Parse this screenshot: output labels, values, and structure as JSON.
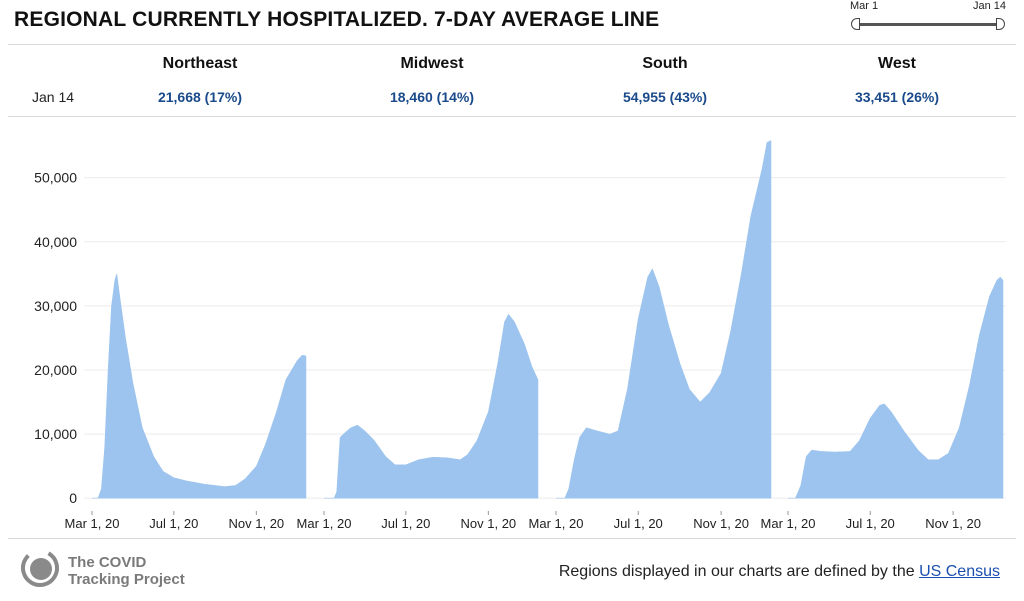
{
  "title": "REGIONAL CURRENTLY HOSPITALIZED. 7-DAY AVERAGE LINE",
  "range_slider": {
    "start_label": "Mar 1",
    "end_label": "Jan 14"
  },
  "summary_date": "Jan 14",
  "regions": [
    {
      "name": "Northeast",
      "value_label": "21,668 (17%)"
    },
    {
      "name": "Midwest",
      "value_label": "18,460 (14%)"
    },
    {
      "name": "South",
      "value_label": "54,955 (43%)"
    },
    {
      "name": "West",
      "value_label": "33,451 (26%)"
    }
  ],
  "brand": {
    "line1": "The COVID",
    "line2": "Tracking Project"
  },
  "footnote": {
    "text": "Regions displayed in our charts are defined by the",
    "link": "US Census"
  },
  "colors": {
    "area": "#9cc4ee",
    "accent_value": "#1a4a8a",
    "link": "#1a4fb0"
  },
  "chart_data": {
    "type": "area",
    "y_tick_labels": [
      "0",
      "10,000",
      "20,000",
      "30,000",
      "40,000",
      "50,000"
    ],
    "y_ticks": [
      0,
      10000,
      20000,
      30000,
      40000,
      50000
    ],
    "ylim": [
      -2000,
      56500
    ],
    "grid": true,
    "x_tick_labels": [
      "Mar 1, 20",
      "Jul 1, 20",
      "Nov 1, 20"
    ],
    "x_tick_dates": [
      "2020-03-01",
      "2020-07-01",
      "2020-11-01"
    ],
    "x_range": [
      "2020-03-01",
      "2021-01-14"
    ],
    "series": [
      {
        "name": "Northeast",
        "points": [
          [
            "2020-03-01",
            0
          ],
          [
            "2020-03-10",
            0
          ],
          [
            "2020-03-15",
            1500
          ],
          [
            "2020-03-20",
            8000
          ],
          [
            "2020-03-25",
            20000
          ],
          [
            "2020-03-30",
            30000
          ],
          [
            "2020-04-04",
            34000
          ],
          [
            "2020-04-07",
            35000
          ],
          [
            "2020-04-12",
            31000
          ],
          [
            "2020-04-20",
            25000
          ],
          [
            "2020-05-01",
            18000
          ],
          [
            "2020-05-15",
            11000
          ],
          [
            "2020-06-01",
            6500
          ],
          [
            "2020-06-15",
            4200
          ],
          [
            "2020-07-01",
            3200
          ],
          [
            "2020-07-20",
            2700
          ],
          [
            "2020-08-15",
            2200
          ],
          [
            "2020-09-15",
            1800
          ],
          [
            "2020-10-01",
            2000
          ],
          [
            "2020-10-15",
            3000
          ],
          [
            "2020-11-01",
            5000
          ],
          [
            "2020-11-15",
            8500
          ],
          [
            "2020-12-01",
            13500
          ],
          [
            "2020-12-15",
            18500
          ],
          [
            "2021-01-01",
            21500
          ],
          [
            "2021-01-08",
            22300
          ],
          [
            "2021-01-14",
            22200
          ]
        ]
      },
      {
        "name": "Midwest",
        "points": [
          [
            "2020-03-01",
            0
          ],
          [
            "2020-03-16",
            0
          ],
          [
            "2020-03-20",
            1000
          ],
          [
            "2020-03-25",
            9500
          ],
          [
            "2020-04-01",
            10200
          ],
          [
            "2020-04-10",
            11000
          ],
          [
            "2020-04-20",
            11400
          ],
          [
            "2020-05-01",
            10500
          ],
          [
            "2020-05-15",
            9000
          ],
          [
            "2020-06-01",
            6500
          ],
          [
            "2020-06-15",
            5200
          ],
          [
            "2020-07-01",
            5200
          ],
          [
            "2020-07-20",
            6000
          ],
          [
            "2020-08-10",
            6400
          ],
          [
            "2020-09-01",
            6300
          ],
          [
            "2020-09-20",
            6000
          ],
          [
            "2020-10-01",
            6800
          ],
          [
            "2020-10-15",
            9000
          ],
          [
            "2020-11-01",
            13500
          ],
          [
            "2020-11-15",
            21000
          ],
          [
            "2020-11-25",
            27500
          ],
          [
            "2020-12-01",
            28700
          ],
          [
            "2020-12-10",
            27500
          ],
          [
            "2020-12-25",
            24000
          ],
          [
            "2021-01-05",
            20500
          ],
          [
            "2021-01-14",
            18500
          ]
        ]
      },
      {
        "name": "South",
        "points": [
          [
            "2020-03-01",
            0
          ],
          [
            "2020-03-14",
            0
          ],
          [
            "2020-03-20",
            1500
          ],
          [
            "2020-03-28",
            6000
          ],
          [
            "2020-04-05",
            9500
          ],
          [
            "2020-04-15",
            11000
          ],
          [
            "2020-05-01",
            10500
          ],
          [
            "2020-05-20",
            10000
          ],
          [
            "2020-06-01",
            10500
          ],
          [
            "2020-06-15",
            17000
          ],
          [
            "2020-07-01",
            28000
          ],
          [
            "2020-07-15",
            34500
          ],
          [
            "2020-07-22",
            35800
          ],
          [
            "2020-08-01",
            33000
          ],
          [
            "2020-08-15",
            27000
          ],
          [
            "2020-09-01",
            21000
          ],
          [
            "2020-09-15",
            17000
          ],
          [
            "2020-10-01",
            15000
          ],
          [
            "2020-10-15",
            16500
          ],
          [
            "2020-11-01",
            19500
          ],
          [
            "2020-11-15",
            26000
          ],
          [
            "2020-12-01",
            35000
          ],
          [
            "2020-12-15",
            44000
          ],
          [
            "2021-01-01",
            51500
          ],
          [
            "2021-01-08",
            55500
          ],
          [
            "2021-01-14",
            55800
          ]
        ]
      },
      {
        "name": "West",
        "points": [
          [
            "2020-03-01",
            0
          ],
          [
            "2020-03-12",
            0
          ],
          [
            "2020-03-20",
            2000
          ],
          [
            "2020-03-28",
            6500
          ],
          [
            "2020-04-05",
            7500
          ],
          [
            "2020-04-20",
            7300
          ],
          [
            "2020-05-10",
            7200
          ],
          [
            "2020-06-01",
            7300
          ],
          [
            "2020-06-15",
            9000
          ],
          [
            "2020-07-01",
            12500
          ],
          [
            "2020-07-15",
            14500
          ],
          [
            "2020-07-22",
            14700
          ],
          [
            "2020-08-01",
            13500
          ],
          [
            "2020-08-20",
            10500
          ],
          [
            "2020-09-10",
            7500
          ],
          [
            "2020-09-25",
            6000
          ],
          [
            "2020-10-10",
            6000
          ],
          [
            "2020-10-25",
            7000
          ],
          [
            "2020-11-10",
            11000
          ],
          [
            "2020-11-25",
            17500
          ],
          [
            "2020-12-10",
            25500
          ],
          [
            "2020-12-25",
            31500
          ],
          [
            "2021-01-05",
            34000
          ],
          [
            "2021-01-10",
            34500
          ],
          [
            "2021-01-14",
            34000
          ]
        ]
      }
    ]
  }
}
